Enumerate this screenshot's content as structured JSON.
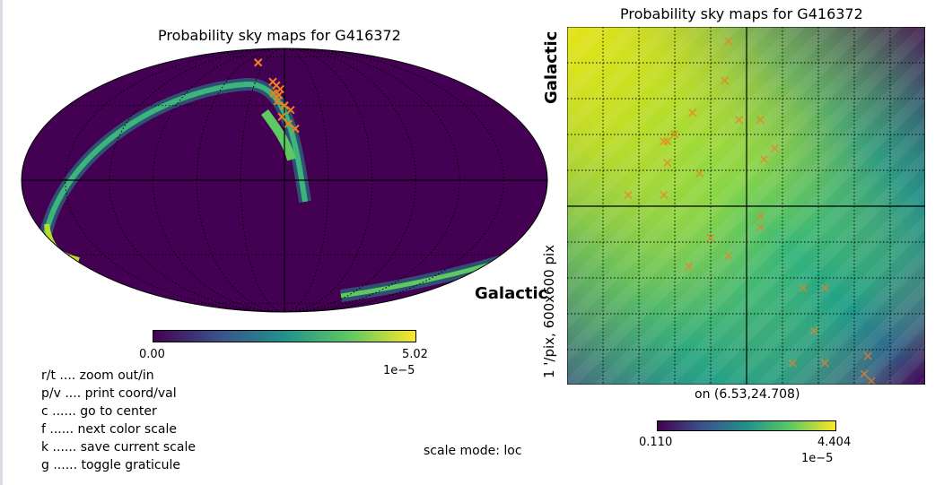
{
  "chart_data": [
    {
      "type": "heatmap",
      "projection": "mollweide",
      "title": "Probability sky maps for G416372",
      "side_label": "Galactic",
      "colormap": "viridis",
      "colorbar": {
        "min": "0.00",
        "max": "5.02",
        "exponent": "1e−5"
      },
      "grid": true,
      "markers": [
        {
          "lon": 40,
          "lat": 55
        },
        {
          "lon": 12,
          "lat": 42
        },
        {
          "lon": 8,
          "lat": 40
        },
        {
          "lon": 5,
          "lat": 35
        },
        {
          "lon": 0,
          "lat": 30
        },
        {
          "lon": -5,
          "lat": 28
        },
        {
          "lon": 2,
          "lat": 25
        },
        {
          "lon": -3,
          "lat": 22
        },
        {
          "lon": 6,
          "lat": 32
        },
        {
          "lon": 10,
          "lat": 36
        },
        {
          "lon": -8,
          "lat": 20
        },
        {
          "lon": 4,
          "lat": 38
        }
      ]
    },
    {
      "type": "heatmap",
      "projection": "gnomonic",
      "title": "Probability sky maps for G416372",
      "side_label_bold": "Galactic",
      "side_label": "1 '/pix,  600x600 pix",
      "center_label": "on (6.53,24.708)",
      "colormap": "viridis",
      "colorbar": {
        "min": "0.110",
        "max": "4.404",
        "exponent": "1e−5"
      },
      "grid": true,
      "markers": [
        {
          "u": 0.45,
          "v": 0.04
        },
        {
          "u": 0.44,
          "v": 0.15
        },
        {
          "u": 0.35,
          "v": 0.24
        },
        {
          "u": 0.48,
          "v": 0.26
        },
        {
          "u": 0.54,
          "v": 0.26
        },
        {
          "u": 0.3,
          "v": 0.3
        },
        {
          "u": 0.28,
          "v": 0.32
        },
        {
          "u": 0.27,
          "v": 0.32
        },
        {
          "u": 0.58,
          "v": 0.34
        },
        {
          "u": 0.55,
          "v": 0.37
        },
        {
          "u": 0.28,
          "v": 0.38
        },
        {
          "u": 0.37,
          "v": 0.41
        },
        {
          "u": 0.17,
          "v": 0.47
        },
        {
          "u": 0.27,
          "v": 0.47
        },
        {
          "u": 0.54,
          "v": 0.53
        },
        {
          "u": 0.54,
          "v": 0.56
        },
        {
          "u": 0.4,
          "v": 0.59
        },
        {
          "u": 0.45,
          "v": 0.64
        },
        {
          "u": 0.34,
          "v": 0.67
        },
        {
          "u": 0.66,
          "v": 0.73
        },
        {
          "u": 0.72,
          "v": 0.73
        },
        {
          "u": 0.69,
          "v": 0.85
        },
        {
          "u": 0.63,
          "v": 0.94
        },
        {
          "u": 0.72,
          "v": 0.94
        },
        {
          "u": 0.84,
          "v": 0.92
        },
        {
          "u": 0.83,
          "v": 0.97
        },
        {
          "u": 0.85,
          "v": 0.99
        }
      ]
    }
  ],
  "help": [
    "r/t .... zoom out/in",
    "p/v .... print coord/val",
    "c ...... go to center",
    "f ...... next color scale",
    "k ...... save current scale",
    "g ...... toggle graticule"
  ],
  "scale_mode": "scale mode: loc",
  "colors": {
    "marker": "#f07f1f",
    "viridis": [
      "#440154",
      "#3b528b",
      "#21918c",
      "#5ec962",
      "#fde725"
    ]
  }
}
